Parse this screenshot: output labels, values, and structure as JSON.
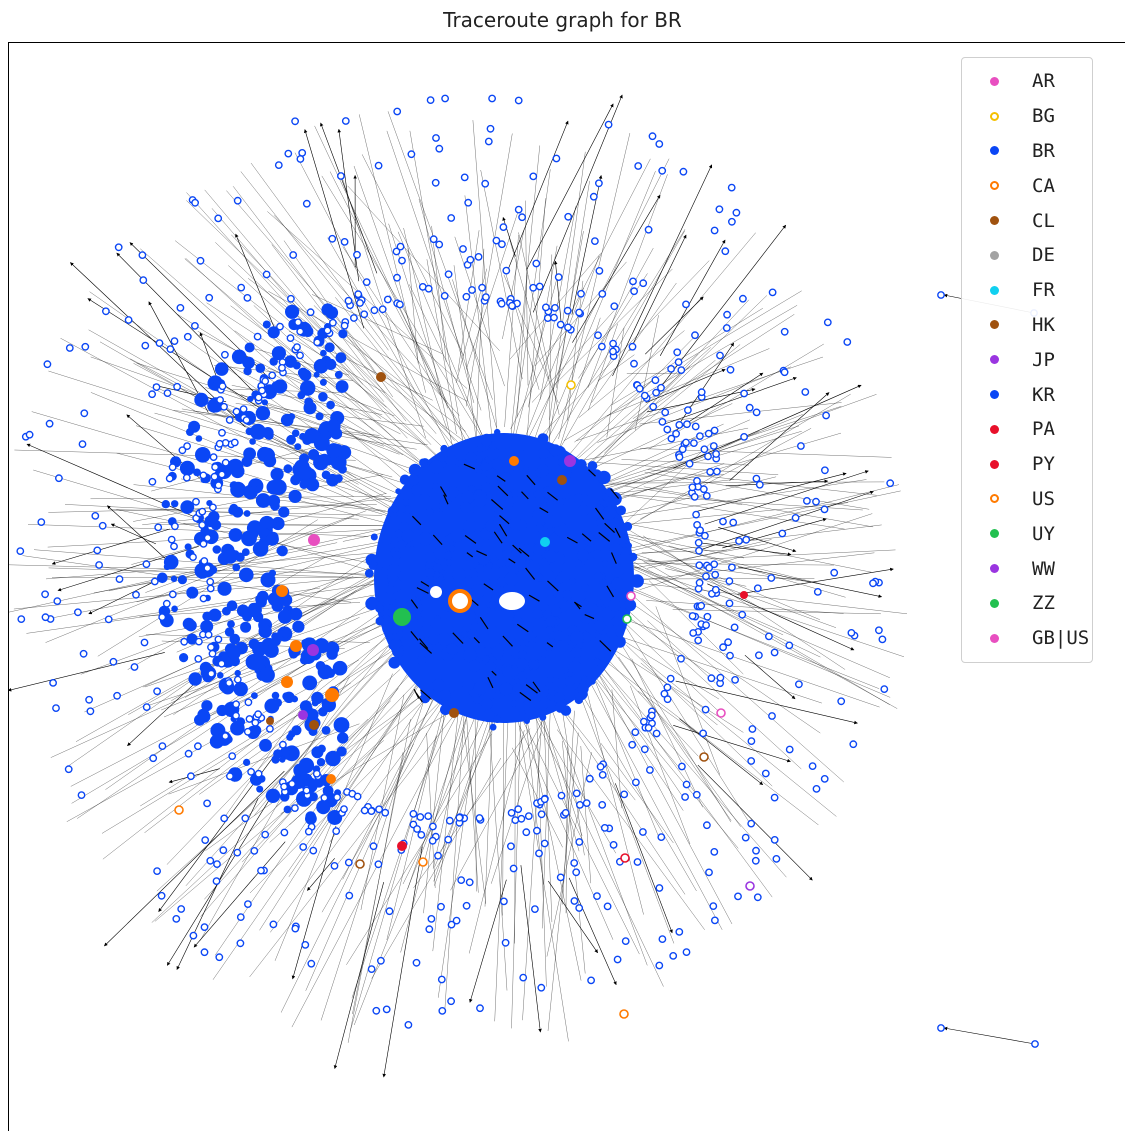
{
  "title": "Traceroute graph for BR",
  "legend": [
    {
      "label": "AR",
      "color": "#e84fc0",
      "style": "filled"
    },
    {
      "label": "BG",
      "color": "#f5c000",
      "style": "hollow"
    },
    {
      "label": "BR",
      "color": "#0a46f5",
      "style": "filled"
    },
    {
      "label": "CA",
      "color": "#ff7a00",
      "style": "hollow"
    },
    {
      "label": "CL",
      "color": "#a0520f",
      "style": "filled"
    },
    {
      "label": "DE",
      "color": "#a3a3a3",
      "style": "filled"
    },
    {
      "label": "FR",
      "color": "#10d0f0",
      "style": "filled"
    },
    {
      "label": "HK",
      "color": "#a0520f",
      "style": "filled"
    },
    {
      "label": "JP",
      "color": "#9a35e0",
      "style": "filled"
    },
    {
      "label": "KR",
      "color": "#0a46f5",
      "style": "filled"
    },
    {
      "label": "PA",
      "color": "#e8102a",
      "style": "filled"
    },
    {
      "label": "PY",
      "color": "#e8102a",
      "style": "filled"
    },
    {
      "label": "US",
      "color": "#ff7a00",
      "style": "hollow"
    },
    {
      "label": "UY",
      "color": "#22c050",
      "style": "filled"
    },
    {
      "label": "WW",
      "color": "#9a35e0",
      "style": "filled"
    },
    {
      "label": "ZZ",
      "color": "#22c050",
      "style": "filled"
    },
    {
      "label": "GB|US",
      "color": "#e84fc0",
      "style": "filled"
    }
  ],
  "colors": {
    "node_main": "#0a46f5",
    "edge": "#000000",
    "background": "#ffffff"
  }
}
